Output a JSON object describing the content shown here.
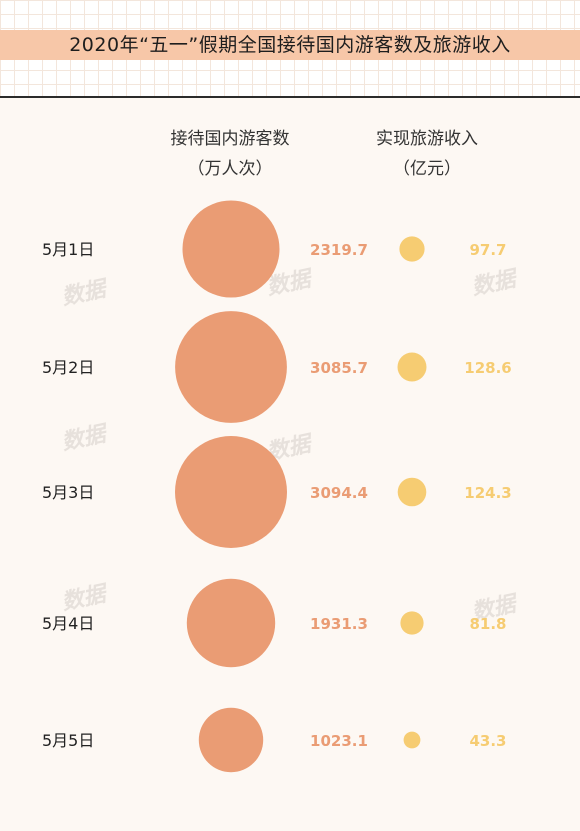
{
  "title": "2020年“五一”假期全国接待国内游客数及旅游收入",
  "watermark": "数据",
  "colors": {
    "visitors": "#ea9c74",
    "revenue": "#f6cc72",
    "background": "#fdf8f3",
    "title_bar": "#f7c7a8"
  },
  "chart_data": {
    "type": "bubble-table",
    "categories": [
      "5月1日",
      "5月2日",
      "5月3日",
      "5月4日",
      "5月5日"
    ],
    "series": [
      {
        "key": "visitors",
        "name": "接待国内游客数",
        "unit": "（万人次）",
        "values": [
          2319.7,
          3085.7,
          3094.4,
          1931.3,
          1023.1
        ],
        "labels": [
          "2319.7",
          "3085.7",
          "3094.4",
          "1931.3",
          "1023.1"
        ]
      },
      {
        "key": "revenue",
        "name": "实现旅游收入",
        "unit": "（亿元）",
        "values": [
          97.7,
          128.6,
          124.3,
          81.8,
          43.3
        ],
        "labels": [
          "97.7",
          "128.6",
          "124.3",
          "81.8",
          "43.3"
        ]
      }
    ]
  }
}
